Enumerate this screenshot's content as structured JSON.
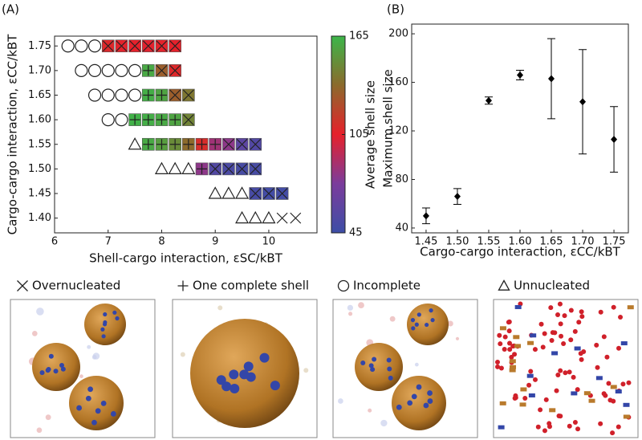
{
  "chart_data": [
    {
      "type": "scatter",
      "panel_label": "(A)",
      "xlabel": "Shell-cargo interaction, εSC/kBT",
      "ylabel": "Cargo-cargo interaction, εCC/kBT",
      "xlim": [
        6,
        10.9
      ],
      "ylim": [
        1.37,
        1.77
      ],
      "xticks": [
        6,
        7,
        8,
        9,
        10
      ],
      "yticks": [
        {
          "value": 1.4,
          "label": "1.40"
        },
        1.45,
        {
          "value": 1.5,
          "label": "1.50"
        },
        1.55,
        {
          "value": 1.6,
          "label": "1.60"
        },
        1.65,
        {
          "value": 1.7,
          "label": "1.70"
        },
        1.75
      ],
      "colorbar": {
        "label": "Average shell size",
        "lim": [
          45,
          165
        ],
        "ticks": [
          45,
          105,
          165
        ],
        "colors": [
          "#3d4ea6",
          "#7b3c9c",
          "#e6212b",
          "#8c6a2c",
          "#3cb64a"
        ]
      },
      "series": [
        {
          "name": "Overnucleated",
          "marker": "cross",
          "x": [
            7.0,
            7.25,
            7.5,
            7.75,
            8.0,
            8.25,
            8.0,
            8.25,
            8.25,
            8.5,
            8.5,
            9.25,
            9.5,
            9.75,
            9.0,
            9.25,
            9.5,
            9.75,
            9.75,
            10.0,
            10.25,
            10.25,
            10.5
          ],
          "values": [
            1.75,
            1.75,
            1.75,
            1.75,
            1.75,
            1.75,
            1.7,
            1.7,
            1.65,
            1.65,
            1.6,
            1.55,
            1.55,
            1.55,
            1.5,
            1.5,
            1.5,
            1.5,
            1.45,
            1.45,
            1.45,
            1.4,
            1.4
          ],
          "sizes": [
            108,
            106,
            105,
            104,
            106,
            105,
            130,
            108,
            130,
            140,
            145,
            80,
            60,
            55,
            55,
            52,
            50,
            50,
            50,
            48,
            48,
            null,
            null
          ]
        },
        {
          "name": "One complete shell",
          "marker": "plus",
          "x": [
            7.75,
            7.75,
            8.0,
            7.5,
            7.75,
            8.0,
            8.25,
            7.75,
            8.0,
            8.25,
            8.5,
            8.75,
            9.0,
            8.75
          ],
          "values": [
            1.7,
            1.65,
            1.65,
            1.6,
            1.6,
            1.6,
            1.6,
            1.55,
            1.55,
            1.55,
            1.55,
            1.55,
            1.55,
            1.5
          ],
          "sizes": [
            160,
            162,
            158,
            163,
            162,
            160,
            158,
            160,
            155,
            148,
            135,
            110,
            85,
            80
          ]
        },
        {
          "name": "Incomplete",
          "marker": "circle",
          "x": [
            6.25,
            6.5,
            6.75,
            6.5,
            6.75,
            7.0,
            7.25,
            7.5,
            6.75,
            7.0,
            7.25,
            7.5,
            7.0,
            7.25
          ],
          "values": [
            1.75,
            1.75,
            1.75,
            1.7,
            1.7,
            1.7,
            1.7,
            1.7,
            1.65,
            1.65,
            1.65,
            1.65,
            1.6,
            1.6
          ]
        },
        {
          "name": "Unnucleated",
          "marker": "triangle",
          "x": [
            7.5,
            8.0,
            8.25,
            8.5,
            9.0,
            9.25,
            9.5,
            9.5,
            9.75,
            10.0
          ],
          "values": [
            1.55,
            1.5,
            1.5,
            1.5,
            1.45,
            1.45,
            1.45,
            1.4,
            1.4,
            1.4
          ]
        }
      ]
    },
    {
      "type": "errorbar",
      "panel_label": "(B)",
      "xlabel": "Cargo-cargo interaction, εCC/kBT",
      "ylabel": "Maximum shell size",
      "x": [
        1.45,
        1.5,
        1.55,
        1.6,
        1.65,
        1.7,
        1.75
      ],
      "values": [
        50,
        66,
        145,
        166,
        163,
        144,
        113
      ],
      "errors": [
        6.5,
        6.5,
        3,
        4,
        33,
        43,
        27
      ],
      "xlim": [
        1.427,
        1.773
      ],
      "ylim": [
        36,
        208
      ],
      "xticks": [
        1.45,
        {
          "value": 1.5,
          "label": "1.50"
        },
        1.55,
        {
          "value": 1.6,
          "label": "1.60"
        },
        1.65,
        {
          "value": 1.7,
          "label": "1.70"
        },
        1.75
      ],
      "yticks": [
        40,
        80,
        120,
        160,
        200
      ],
      "color": "#000000"
    }
  ]
}
